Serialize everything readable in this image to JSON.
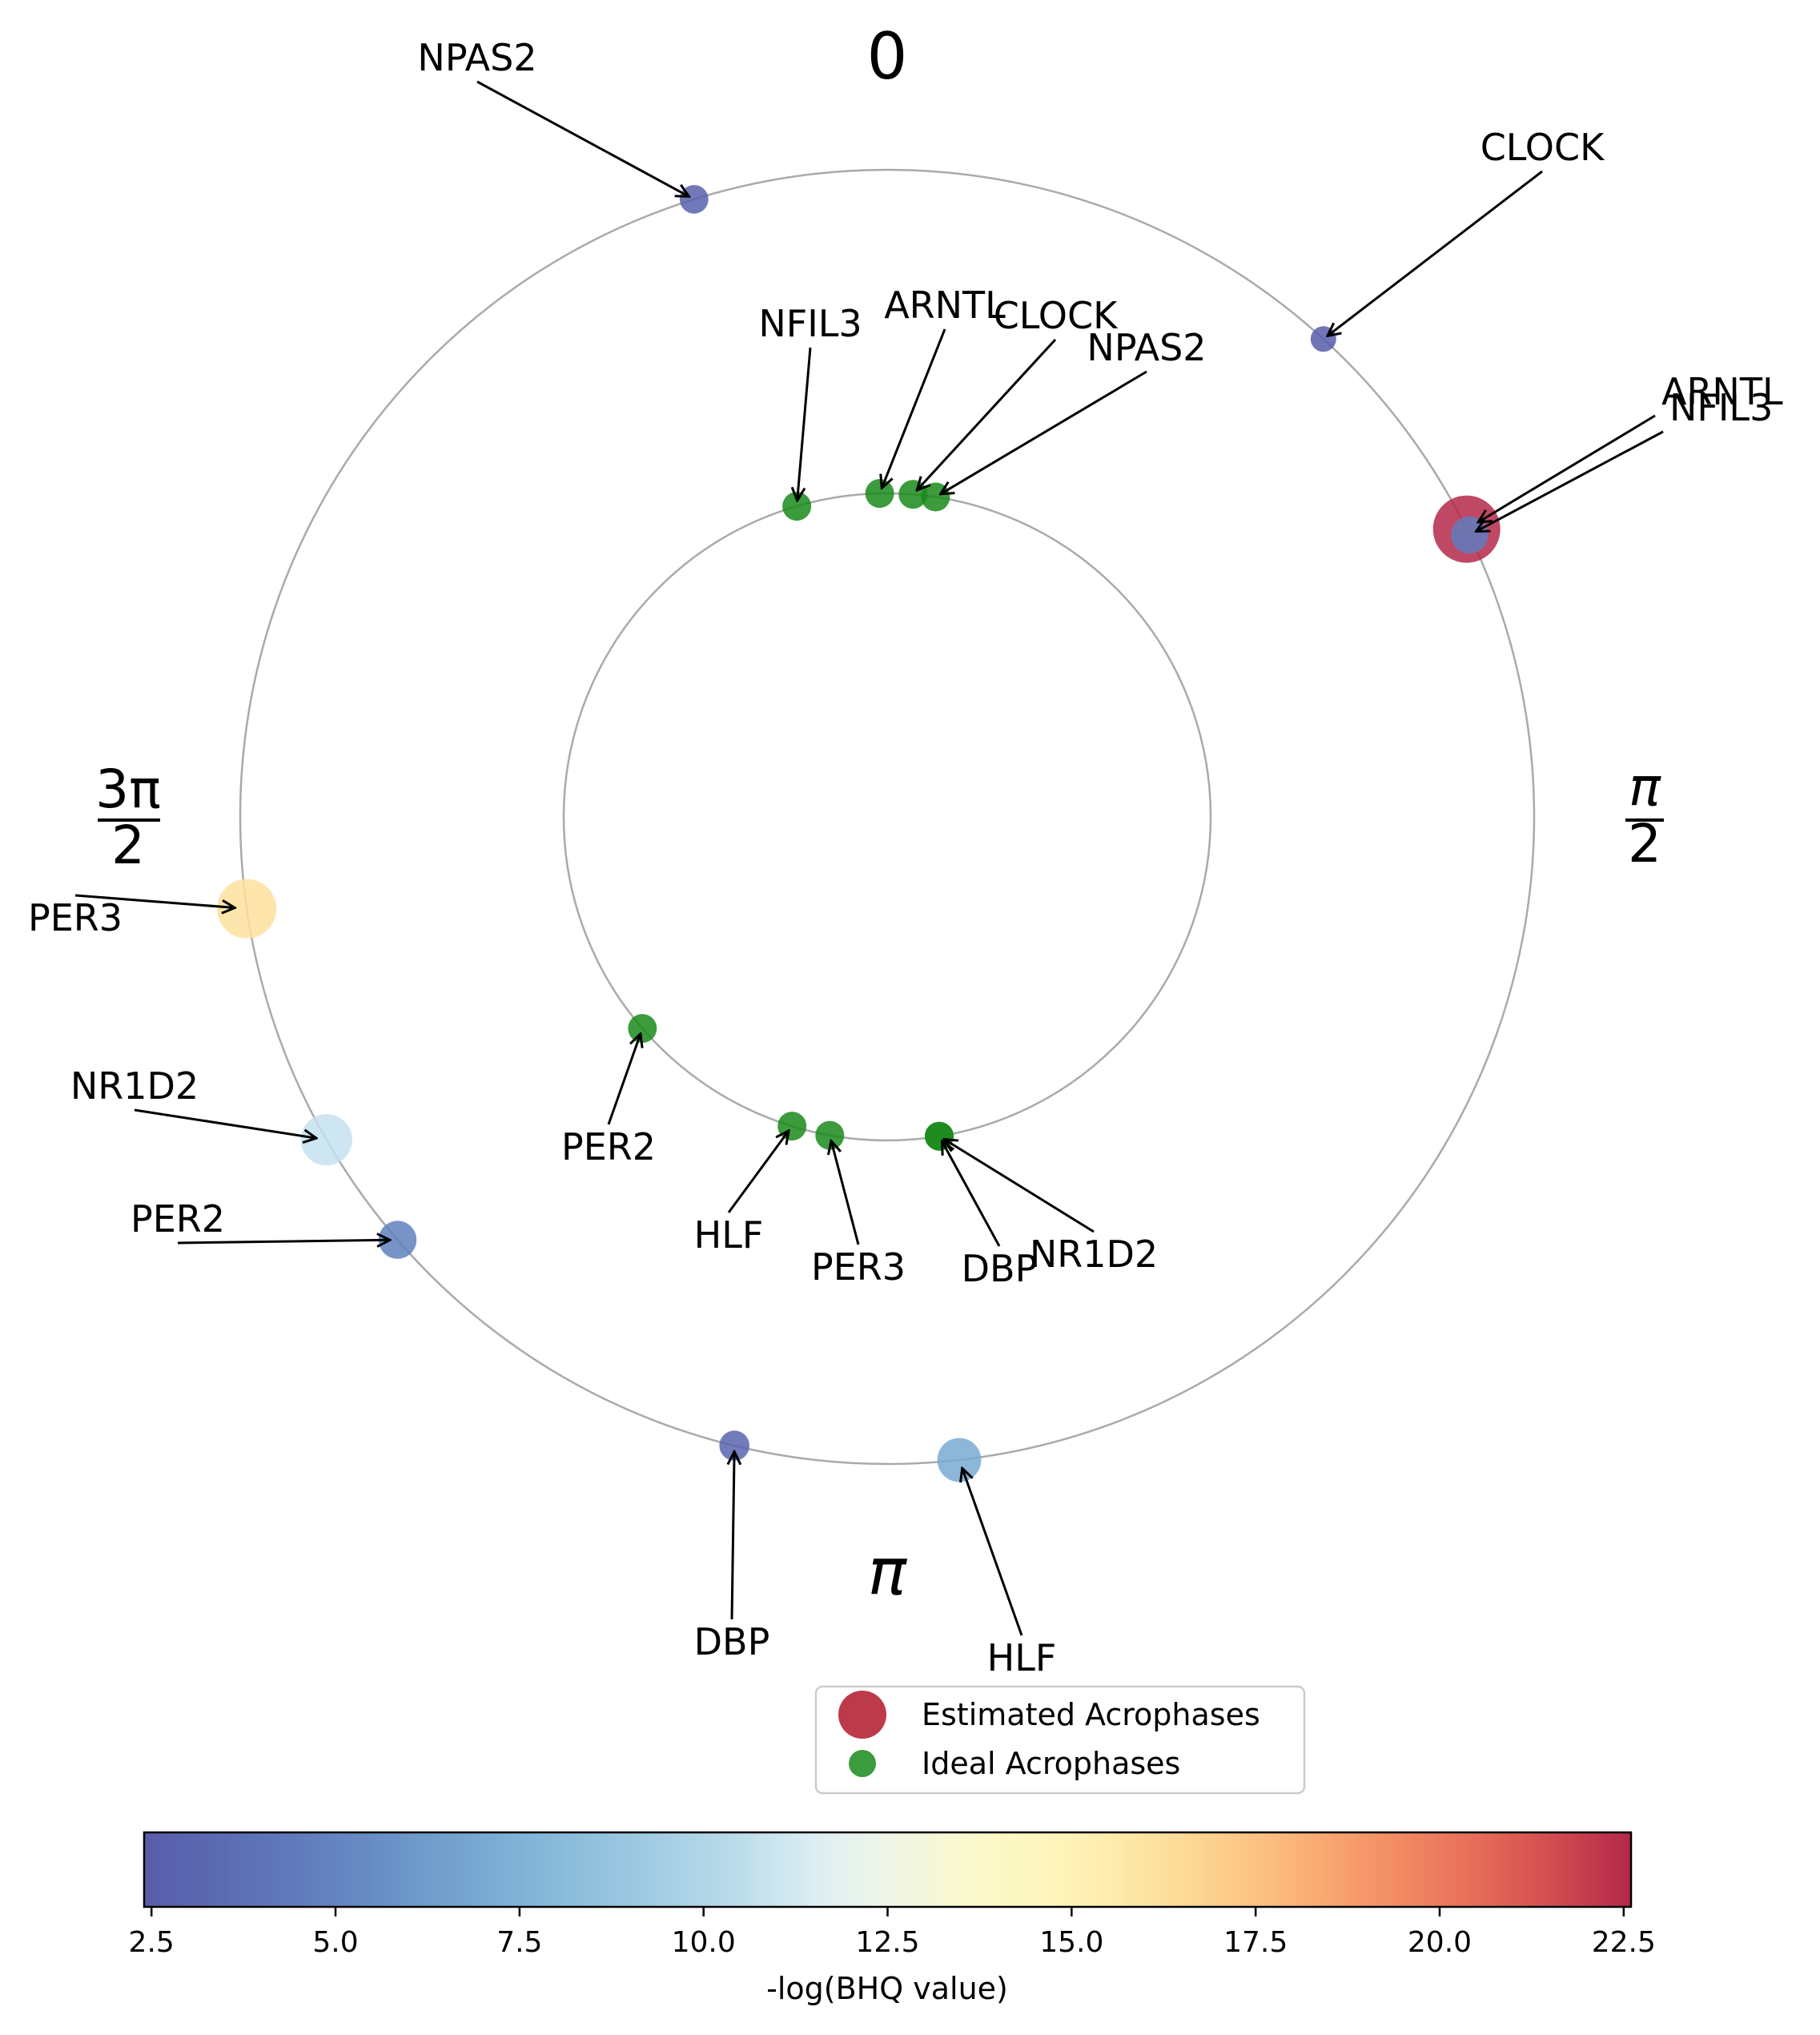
{
  "chart_data": {
    "type": "scatter",
    "subtype": "polar-acrophase",
    "angle_labels": {
      "top": "0",
      "right_num": "π",
      "right_den": "2",
      "bottom": "π",
      "left_num": "3π",
      "left_den": "2"
    },
    "estimated_color": "#b2182b",
    "ideal_color": "#1a8a1a",
    "series": [
      {
        "name": "Estimated Acrophases",
        "ring": "outer",
        "points": [
          {
            "gene": "NPAS2",
            "phase": 5.98,
            "neglog_bhq": 2.8
          },
          {
            "gene": "CLOCK",
            "phase": 0.74,
            "neglog_bhq": 2.5
          },
          {
            "gene": "ARNTL",
            "phase": 1.11,
            "neglog_bhq": 22.6
          },
          {
            "gene": "NFIL3",
            "phase": 1.12,
            "neglog_bhq": 4.6
          },
          {
            "gene": "PER3",
            "phase": 4.57,
            "neglog_bhq": 16.2
          },
          {
            "gene": "NR1D2",
            "phase": 4.19,
            "neglog_bhq": 10.8
          },
          {
            "gene": "PER2",
            "phase": 4.0,
            "neglog_bhq": 4.8
          },
          {
            "gene": "DBP",
            "phase": 3.38,
            "neglog_bhq": 3.0
          },
          {
            "gene": "HLF",
            "phase": 3.03,
            "neglog_bhq": 7.0
          }
        ]
      },
      {
        "name": "Ideal Acrophases",
        "ring": "inner",
        "points": [
          {
            "gene": "NFIL3",
            "phase": 6.0
          },
          {
            "gene": "ARNTL",
            "phase": 6.26
          },
          {
            "gene": "CLOCK",
            "phase": 0.08
          },
          {
            "gene": "NPAS2",
            "phase": 0.15
          },
          {
            "gene": "PER2",
            "phase": 4.0
          },
          {
            "gene": "HLF",
            "phase": 3.44
          },
          {
            "gene": "PER3",
            "phase": 3.32
          },
          {
            "gene": "DBP",
            "phase": 2.98
          },
          {
            "gene": "NR1D2",
            "phase": 2.98
          }
        ]
      }
    ],
    "legend": {
      "position": "bottom-center",
      "entries": [
        "Estimated Acrophases",
        "Ideal Acrophases"
      ]
    },
    "colorbar": {
      "label": "-log(BHQ value)",
      "range": [
        2.4,
        22.6
      ],
      "ticks": [
        "2.5",
        "5.0",
        "7.5",
        "10.0",
        "12.5",
        "15.0",
        "17.5",
        "20.0",
        "22.5"
      ],
      "colormap": "Spectral_r"
    }
  }
}
